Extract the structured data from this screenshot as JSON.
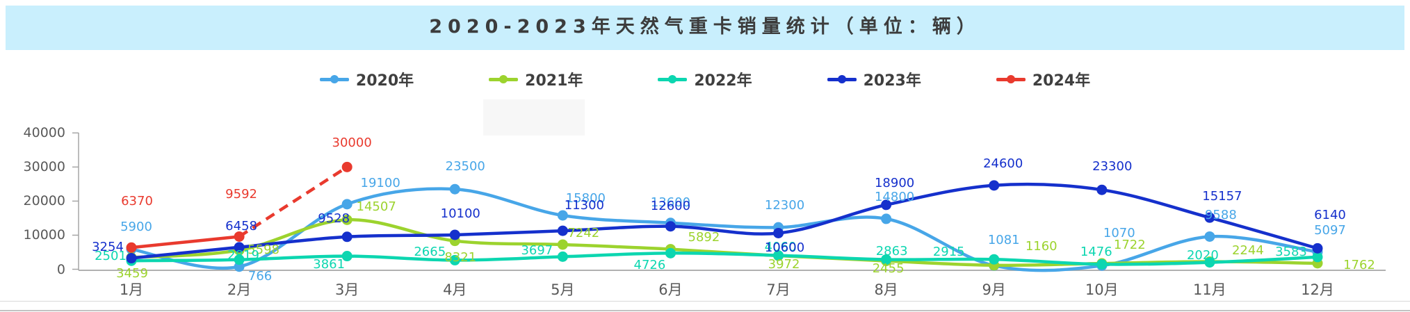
{
  "banner": {
    "title": "2020-2023年天然气重卡销量统计（单位：辆）"
  },
  "legend": {
    "items": [
      "2020年",
      "2021年",
      "2022年",
      "2023年",
      "2024年"
    ]
  },
  "colors": {
    "y2020": "#47a6e8",
    "y2021": "#9cd32e",
    "y2022": "#0cd6b0",
    "y2023": "#1530cc",
    "y2024": "#e93a2e",
    "axis_text": "#595959",
    "banner_bg": "#c9effd"
  },
  "chart_data": {
    "type": "line",
    "title": "2020-2023年天然气重卡销量统计（单位：辆）",
    "unit": "辆",
    "categories": [
      "1月",
      "2月",
      "3月",
      "4月",
      "5月",
      "6月",
      "7月",
      "8月",
      "9月",
      "10月",
      "11月",
      "12月"
    ],
    "xlabel": "",
    "ylabel": "",
    "ylim": [
      0,
      40000
    ],
    "y_ticks": [
      0,
      10000,
      20000,
      30000,
      40000
    ],
    "grid": false,
    "legend_position": "top",
    "series": [
      {
        "name": "2020年",
        "color": "#47a6e8",
        "style": "solid",
        "values": [
          5900,
          766,
          19100,
          23500,
          15800,
          13600,
          12300,
          14800,
          1081,
          1070,
          9588,
          5097
        ]
      },
      {
        "name": "2021年",
        "color": "#9cd32e",
        "style": "solid",
        "values": [
          3459,
          5598,
          14507,
          8321,
          7242,
          5892,
          3972,
          2455,
          1160,
          1722,
          2244,
          1762
        ]
      },
      {
        "name": "2022年",
        "color": "#0cd6b0",
        "style": "solid",
        "values": [
          2501,
          2819,
          3861,
          2665,
          3697,
          4726,
          4060,
          2863,
          2915,
          1476,
          2020,
          3583
        ]
      },
      {
        "name": "2023年",
        "color": "#1530cc",
        "style": "solid",
        "values": [
          3254,
          6458,
          9528,
          10100,
          11300,
          12600,
          10600,
          18900,
          24600,
          23300,
          15157,
          6140
        ]
      },
      {
        "name": "2024年",
        "color": "#e93a2e",
        "style": "solid_then_dashed",
        "dashed_from_index": 1,
        "values": [
          6370,
          9592,
          30000
        ]
      }
    ]
  }
}
